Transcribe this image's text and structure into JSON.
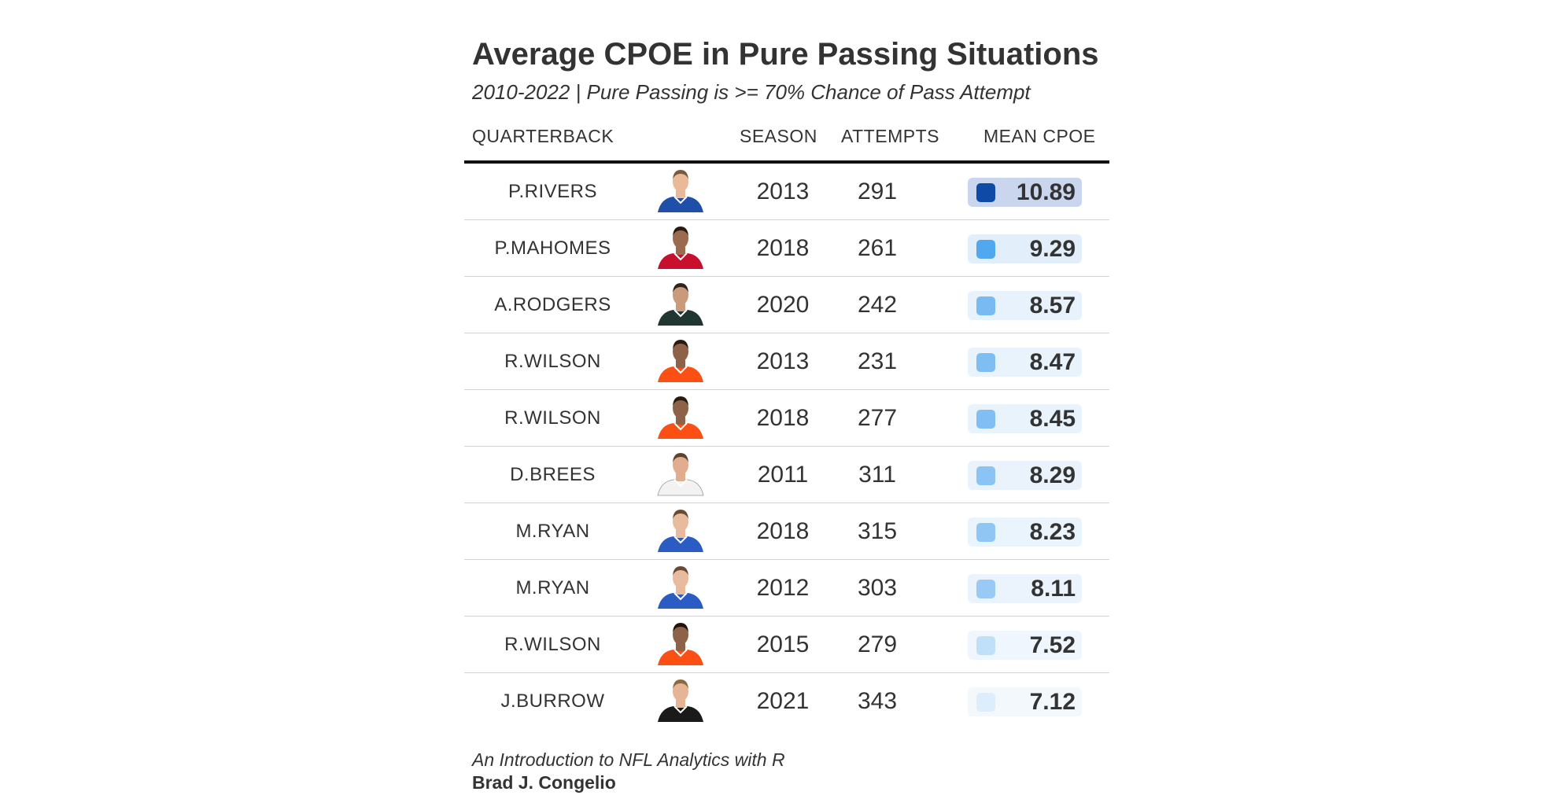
{
  "chart_data": {
    "type": "table",
    "title": "Average CPOE in Pure Passing Situations",
    "subtitle": "2010-2022 | Pure Passing is >= 70% Chance of Pass Attempt",
    "columns": [
      "QUARTERBACK",
      "SEASON",
      "ATTEMPTS",
      "MEAN CPOE"
    ],
    "rows": [
      {
        "quarterback": "P.RIVERS",
        "season": "2013",
        "attempts": "291",
        "mean_cpoe": "10.89",
        "cpoe": 10.89,
        "jersey": "#1f4fa8",
        "skin": "#e9b99a",
        "hair": "#7a5a3a"
      },
      {
        "quarterback": "P.MAHOMES",
        "season": "2018",
        "attempts": "261",
        "mean_cpoe": "9.29",
        "cpoe": 9.29,
        "jersey": "#c8102e",
        "skin": "#9a6b4f",
        "hair": "#2b1a10"
      },
      {
        "quarterback": "A.RODGERS",
        "season": "2020",
        "attempts": "242",
        "mean_cpoe": "8.57",
        "cpoe": 8.57,
        "jersey": "#203731",
        "skin": "#c99a7c",
        "hair": "#2d241c"
      },
      {
        "quarterback": "R.WILSON",
        "season": "2013",
        "attempts": "231",
        "mean_cpoe": "8.47",
        "cpoe": 8.47,
        "jersey": "#fb4f14",
        "skin": "#8e6248",
        "hair": "#2b1a10"
      },
      {
        "quarterback": "R.WILSON",
        "season": "2018",
        "attempts": "277",
        "mean_cpoe": "8.45",
        "cpoe": 8.45,
        "jersey": "#fb4f14",
        "skin": "#8e6248",
        "hair": "#2b1a10"
      },
      {
        "quarterback": "D.BREES",
        "season": "2011",
        "attempts": "311",
        "mean_cpoe": "8.29",
        "cpoe": 8.29,
        "jersey": "#f2f2f2",
        "skin": "#e1ad8e",
        "hair": "#5b4330"
      },
      {
        "quarterback": "M.RYAN",
        "season": "2018",
        "attempts": "315",
        "mean_cpoe": "8.23",
        "cpoe": 8.23,
        "jersey": "#2a5cc4",
        "skin": "#e8bb9e",
        "hair": "#6a4a32"
      },
      {
        "quarterback": "M.RYAN",
        "season": "2012",
        "attempts": "303",
        "mean_cpoe": "8.11",
        "cpoe": 8.11,
        "jersey": "#2a5cc4",
        "skin": "#e8bb9e",
        "hair": "#6a4a32"
      },
      {
        "quarterback": "R.WILSON",
        "season": "2015",
        "attempts": "279",
        "mean_cpoe": "7.52",
        "cpoe": 7.52,
        "jersey": "#fb4f14",
        "skin": "#8e6248",
        "hair": "#1f140c"
      },
      {
        "quarterback": "J.BURROW",
        "season": "2021",
        "attempts": "343",
        "mean_cpoe": "7.12",
        "cpoe": 7.12,
        "jersey": "#1a1a1a",
        "skin": "#e6b596",
        "hair": "#8a6a3e"
      }
    ],
    "color_scale": {
      "low": "#dcedfb",
      "mid": "#5aabef",
      "high": "#1e94ea",
      "max": "#0f4aa6"
    }
  },
  "footer": {
    "source": "An Introduction to NFL Analytics with R",
    "author": "Brad J. Congelio"
  }
}
